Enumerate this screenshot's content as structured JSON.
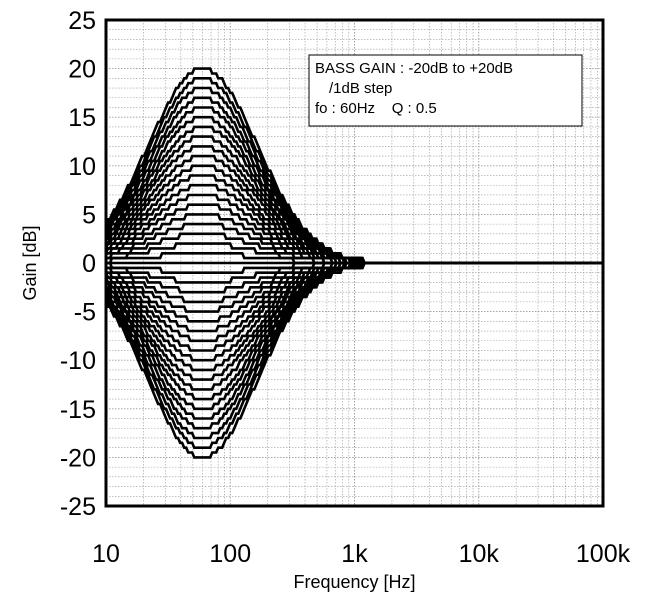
{
  "chart_data": {
    "type": "line",
    "title": "",
    "xlabel": "Frequency [Hz]",
    "ylabel": "Gain [dB]",
    "x_scale": "log",
    "xlim": [
      10,
      100000
    ],
    "ylim": [
      -25,
      25
    ],
    "x_ticks": [
      10,
      100,
      1000,
      10000,
      100000
    ],
    "x_tick_labels": [
      "10",
      "100",
      "1k",
      "10k",
      "100k"
    ],
    "y_ticks": [
      25,
      20,
      15,
      10,
      5,
      0,
      -5,
      -10,
      -15,
      -20,
      -25
    ],
    "y_tick_labels": [
      "25",
      "20",
      "15",
      "10",
      "5",
      "0",
      "-5",
      "-10",
      "-15",
      "-20",
      "-25"
    ],
    "grid": true,
    "legend": "none",
    "annotation": {
      "lines": [
        "BASS GAIN : -20dB to +20dB",
        "/1dB step",
        "fo : 60Hz    Q : 0.5"
      ],
      "placement": "top-right"
    },
    "series_rule": {
      "gain_min_db": -20,
      "gain_max_db": 20,
      "gain_step_db": 1,
      "center_frequency_hz": 60,
      "q": 0.5,
      "line_color": "#000000"
    }
  }
}
